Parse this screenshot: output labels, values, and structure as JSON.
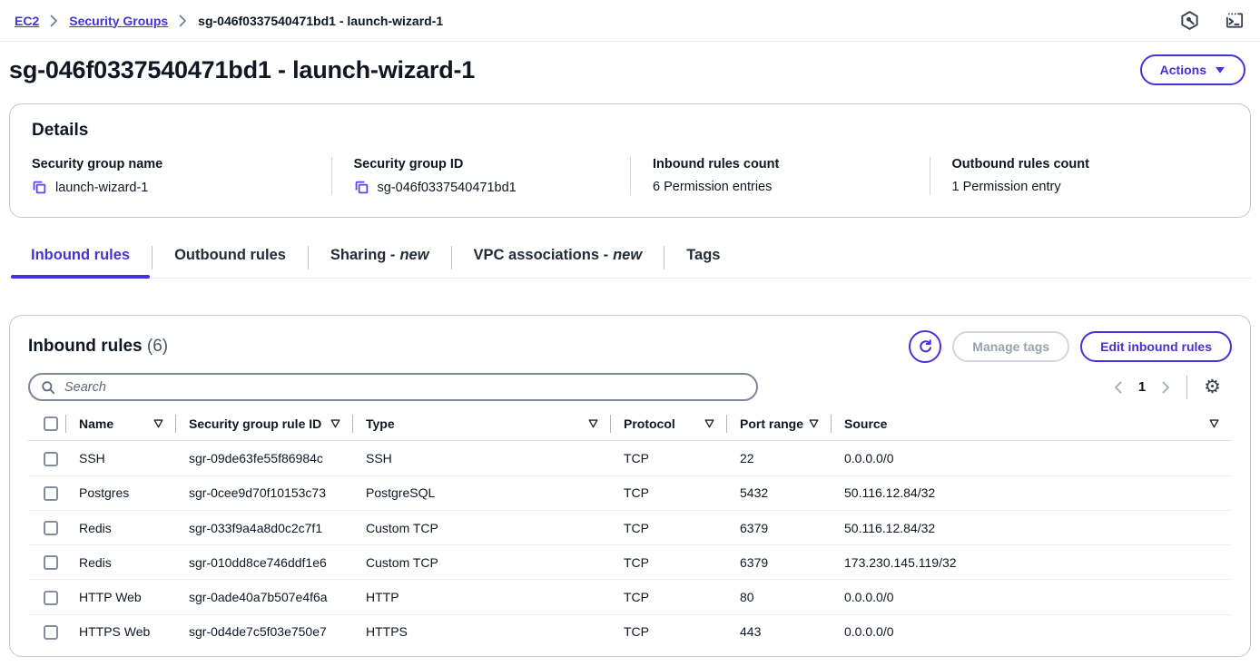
{
  "colors": {
    "accent": "#4632d9",
    "copy_icon": "#5447ee",
    "link": "#4632d9"
  },
  "breadcrumb": {
    "items": [
      {
        "label": "EC2",
        "link": true
      },
      {
        "label": "Security Groups",
        "link": true
      },
      {
        "label": "sg-046f0337540471bd1 - launch-wizard-1",
        "link": false
      }
    ]
  },
  "page": {
    "title": "sg-046f0337540471bd1 - launch-wizard-1",
    "actions_label": "Actions"
  },
  "details": {
    "title": "Details",
    "fields": [
      {
        "label": "Security group name",
        "value": "launch-wizard-1",
        "copy": true
      },
      {
        "label": "Security group ID",
        "value": "sg-046f0337540471bd1",
        "copy": true
      },
      {
        "label": "Inbound rules count",
        "value": "6 Permission entries",
        "copy": false
      },
      {
        "label": "Outbound rules count",
        "value": "1 Permission entry",
        "copy": false
      }
    ]
  },
  "tabs": [
    {
      "label": "Inbound rules",
      "suffix": "",
      "active": true
    },
    {
      "label": "Outbound rules",
      "suffix": "",
      "active": false
    },
    {
      "label": "Sharing -",
      "suffix": "new",
      "active": false
    },
    {
      "label": "VPC associations -",
      "suffix": "new",
      "active": false
    },
    {
      "label": "Tags",
      "suffix": "",
      "active": false
    }
  ],
  "panel": {
    "title": "Inbound rules",
    "count": "(6)",
    "manage_tags_label": "Manage tags",
    "edit_button_label": "Edit inbound rules",
    "search_placeholder": "Search",
    "page_number": "1"
  },
  "table": {
    "columns": [
      "Name",
      "Security group rule ID",
      "Type",
      "Protocol",
      "Port range",
      "Source"
    ],
    "rows": [
      {
        "name": "SSH",
        "rule_id": "sgr-09de63fe55f86984c",
        "type": "SSH",
        "protocol": "TCP",
        "port_range": "22",
        "source": "0.0.0.0/0"
      },
      {
        "name": "Postgres",
        "rule_id": "sgr-0cee9d70f10153c73",
        "type": "PostgreSQL",
        "protocol": "TCP",
        "port_range": "5432",
        "source": "50.116.12.84/32"
      },
      {
        "name": "Redis",
        "rule_id": "sgr-033f9a4a8d0c2c7f1",
        "type": "Custom TCP",
        "protocol": "TCP",
        "port_range": "6379",
        "source": "50.116.12.84/32"
      },
      {
        "name": "Redis",
        "rule_id": "sgr-010dd8ce746ddf1e6",
        "type": "Custom TCP",
        "protocol": "TCP",
        "port_range": "6379",
        "source": "173.230.145.119/32"
      },
      {
        "name": "HTTP Web",
        "rule_id": "sgr-0ade40a7b507e4f6a",
        "type": "HTTP",
        "protocol": "TCP",
        "port_range": "80",
        "source": "0.0.0.0/0"
      },
      {
        "name": "HTTPS Web",
        "rule_id": "sgr-0d4de7c5f03e750e7",
        "type": "HTTPS",
        "protocol": "TCP",
        "port_range": "443",
        "source": "0.0.0.0/0"
      }
    ]
  }
}
